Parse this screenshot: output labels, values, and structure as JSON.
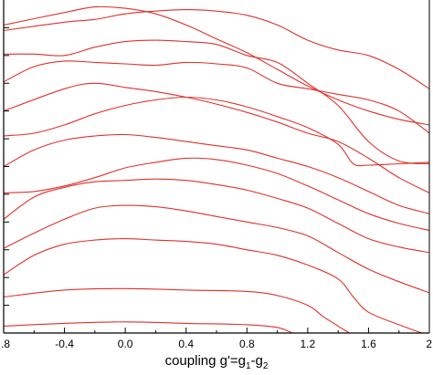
{
  "chart_data": {
    "type": "line",
    "xlabel_parts": [
      "coupling g'=g",
      "1",
      "-g",
      "2"
    ],
    "xlim": [
      -0.8,
      2.0
    ],
    "xticks": [
      -0.8,
      -0.4,
      0.0,
      0.4,
      0.8,
      1.2,
      1.6,
      2.0
    ],
    "xtick_labels": [
      ".8",
      "-0.4",
      "0.0",
      "0.4",
      "0.8",
      "1.2",
      "1.6",
      "2"
    ],
    "ylim": [
      0,
      12
    ],
    "y_tick_values": [
      1,
      2,
      3,
      4,
      5,
      6,
      7,
      8,
      9,
      10,
      11
    ],
    "y_tick_labels_visible": false,
    "line_color": "#e0302a",
    "series": [
      {
        "x": [
          -0.8,
          -0.4,
          -0.2,
          0.0,
          0.2,
          0.4,
          0.6,
          0.8,
          1.0,
          1.2,
          1.4,
          1.6,
          1.8,
          2.0
        ],
        "y": [
          11.1,
          11.55,
          11.75,
          11.7,
          11.5,
          11.1,
          10.6,
          10.1,
          9.5,
          8.9,
          8.4,
          8.0,
          7.7,
          7.5
        ]
      },
      {
        "x": [
          -0.8,
          -0.4,
          -0.2,
          0.0,
          0.2,
          0.4,
          0.6,
          0.8,
          1.0,
          1.2,
          1.4,
          1.6,
          1.8,
          2.0
        ],
        "y": [
          10.9,
          11.2,
          11.3,
          11.5,
          11.6,
          11.65,
          11.6,
          11.45,
          11.1,
          10.55,
          10.2,
          10.0,
          9.5,
          8.8
        ]
      },
      {
        "x": [
          -0.8,
          -0.6,
          -0.4,
          -0.2,
          0.0,
          0.2,
          0.4,
          0.6,
          0.8,
          1.0,
          1.2,
          1.4,
          1.6,
          1.8,
          2.0
        ],
        "y": [
          10.05,
          10.05,
          10.0,
          10.3,
          10.5,
          10.55,
          10.5,
          10.4,
          10.0,
          9.75,
          9.0,
          8.2,
          6.9,
          6.2,
          6.1
        ]
      },
      {
        "x": [
          -0.8,
          -0.6,
          -0.4,
          -0.2,
          0.0,
          0.2,
          0.4,
          0.6,
          0.8,
          1.0,
          1.2,
          1.4,
          1.6,
          1.8,
          2.0
        ],
        "y": [
          9.05,
          9.6,
          9.8,
          9.75,
          9.7,
          9.65,
          9.75,
          9.7,
          9.55,
          9.0,
          8.8,
          8.6,
          8.4,
          8.0,
          7.2
        ]
      },
      {
        "x": [
          -0.8,
          -0.4,
          -0.2,
          0.0,
          0.2,
          0.4,
          0.6,
          0.8,
          1.0,
          1.2,
          1.4,
          1.6,
          1.8,
          2.0
        ],
        "y": [
          8.0,
          8.8,
          9.0,
          8.85,
          8.7,
          8.5,
          8.25,
          7.95,
          7.6,
          7.2,
          6.9,
          6.3,
          5.6,
          5.05
        ]
      },
      {
        "x": [
          -0.8,
          -0.6,
          -0.4,
          -0.2,
          0.0,
          0.2,
          0.4,
          0.6,
          0.8,
          1.0,
          1.2,
          1.4,
          1.5,
          1.6,
          1.8,
          2.0
        ],
        "y": [
          7.1,
          7.2,
          7.5,
          7.9,
          8.2,
          8.4,
          8.5,
          8.4,
          8.15,
          7.8,
          7.4,
          6.8,
          6.1,
          6.05,
          6.1,
          6.15
        ]
      },
      {
        "x": [
          -0.8,
          -0.6,
          -0.4,
          -0.2,
          0.0,
          0.2,
          0.4,
          0.6,
          0.8,
          1.0,
          1.2,
          1.4,
          1.6,
          1.8,
          2.0
        ],
        "y": [
          6.0,
          6.6,
          6.95,
          7.1,
          7.15,
          7.05,
          6.9,
          6.75,
          6.6,
          6.3,
          6.0,
          5.6,
          5.1,
          4.6,
          4.3
        ]
      },
      {
        "x": [
          -0.8,
          -0.6,
          -0.4,
          -0.2,
          0.0,
          0.2,
          0.4,
          0.6,
          0.8,
          1.0,
          1.2,
          1.4,
          1.6,
          1.8,
          2.0
        ],
        "y": [
          5.05,
          5.1,
          5.3,
          5.6,
          5.95,
          6.15,
          6.3,
          6.25,
          6.05,
          5.75,
          5.3,
          4.8,
          4.3,
          3.95,
          3.7
        ]
      },
      {
        "x": [
          -0.8,
          -0.6,
          -0.4,
          -0.2,
          0.0,
          0.2,
          0.4,
          0.6,
          0.8,
          1.0,
          1.2,
          1.4,
          1.6,
          1.8,
          2.0
        ],
        "y": [
          4.1,
          4.9,
          5.25,
          5.45,
          5.5,
          5.55,
          5.5,
          5.35,
          5.15,
          4.85,
          4.5,
          3.95,
          3.4,
          3.1,
          2.9
        ]
      },
      {
        "x": [
          -0.8,
          -0.6,
          -0.4,
          -0.2,
          0.0,
          0.2,
          0.4,
          0.6,
          0.8,
          1.0,
          1.2,
          1.4,
          1.6,
          1.8,
          2.0
        ],
        "y": [
          3.05,
          3.6,
          4.1,
          4.5,
          4.6,
          4.55,
          4.4,
          4.2,
          4.0,
          3.8,
          3.5,
          2.9,
          2.3,
          1.85,
          1.45
        ]
      },
      {
        "x": [
          -0.8,
          -0.6,
          -0.4,
          -0.2,
          0.0,
          0.2,
          0.4,
          0.6,
          0.8,
          1.0,
          1.2,
          1.4,
          1.5,
          1.6,
          1.8,
          2.0
        ],
        "y": [
          2.1,
          2.8,
          3.2,
          3.35,
          3.4,
          3.35,
          3.3,
          3.2,
          3.0,
          2.8,
          2.45,
          1.95,
          1.3,
          0.75,
          0.3,
          -0.1
        ]
      },
      {
        "x": [
          -0.8,
          -0.4,
          0.0,
          0.4,
          0.8,
          1.0,
          1.2,
          1.3,
          1.4,
          1.5,
          1.55
        ],
        "y": [
          1.3,
          1.55,
          1.6,
          1.55,
          1.5,
          1.35,
          1.0,
          0.6,
          0.25,
          -0.1,
          -0.4
        ]
      },
      {
        "x": [
          -0.8,
          -0.4,
          0.0,
          0.4,
          0.8,
          1.0,
          1.1,
          1.2,
          1.25
        ],
        "y": [
          0.25,
          0.35,
          0.4,
          0.35,
          0.3,
          0.2,
          0.0,
          -0.2,
          -0.4
        ]
      }
    ]
  }
}
